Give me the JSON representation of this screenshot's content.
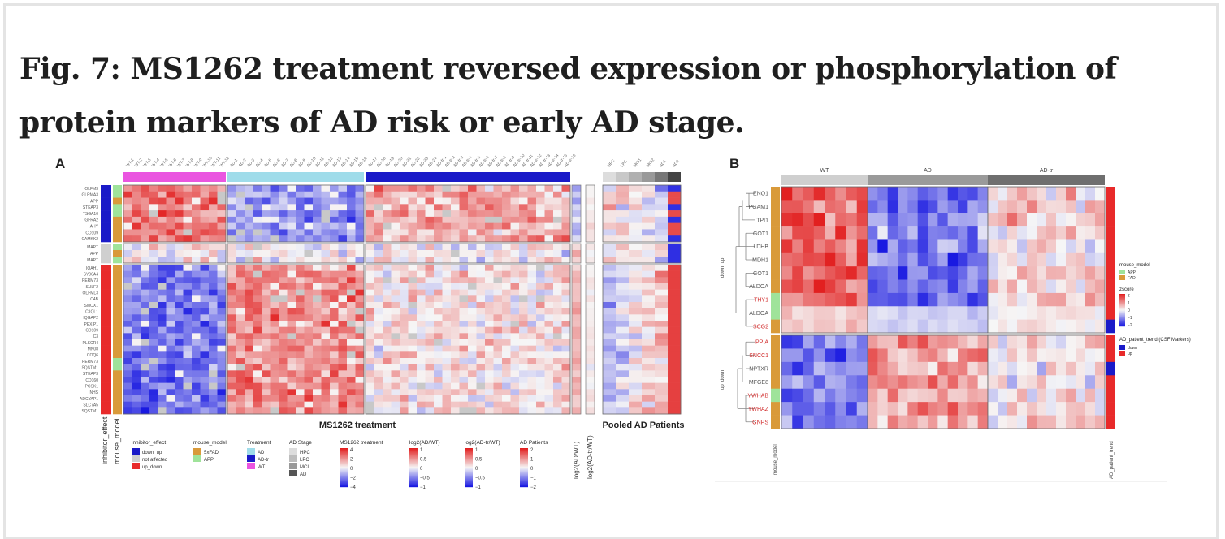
{
  "figure": {
    "title": "Fig. 7: MS1262 treatment reversed expression or phosphorylation of protein markers of AD risk or early AD stage."
  },
  "panel_a": {
    "letter": "A",
    "genes": [
      "OLFM3",
      "GLRMA3",
      "APP",
      "STEAP3",
      "TSGA10",
      "GFRA2",
      "AHY",
      "CD109",
      "CAMKK2",
      "MAPT",
      "APP",
      "MAPT",
      "IQAH1",
      "SY06A4",
      "PERM73",
      "SULF2",
      "OLFML3",
      "C4B",
      "SMOX1",
      "C1QL1",
      "IQGAP2",
      "PEXIP1",
      "CD109",
      "C3",
      "PLSCR4",
      "MN08",
      "COQ6",
      "PERM73",
      "SQSTM1",
      "STEAP3",
      "CD160",
      "PCSK1",
      "NHS",
      "ADCYAP1",
      "SLC7A5",
      "SQSTM1"
    ],
    "column_labels": [
      "WT-1",
      "WT-2",
      "WT-3",
      "WT-4",
      "WT-5",
      "WT-6",
      "WT-7",
      "WT-8",
      "WT-9",
      "WT-10",
      "WT-11",
      "WT-12",
      "AD-1",
      "AD-2",
      "AD-3",
      "AD-4",
      "AD-5",
      "AD-6",
      "AD-7",
      "AD-8",
      "AD-9",
      "AD-10",
      "AD-11",
      "AD-12",
      "AD-13",
      "AD-14",
      "AD-15",
      "AD-16",
      "AD-17",
      "AD-18",
      "AD-19",
      "AD-20",
      "AD-21",
      "AD-22",
      "AD-23",
      "AD-24",
      "AD-tr-1",
      "AD-tr-2",
      "AD-tr-3",
      "AD-tr-4",
      "AD-tr-5",
      "AD-tr-6",
      "AD-tr-7",
      "AD-tr-8",
      "AD-tr-9",
      "AD-tr-10",
      "AD-tr-11",
      "AD-tr-12",
      "AD-tr-13",
      "AD-tr-14",
      "AD-tr-15",
      "AD-tr-16"
    ],
    "patient_labels": [
      "HPC",
      "LPC",
      "MCI1",
      "MCI2",
      "AD1",
      "AD2"
    ],
    "row_annot_labels": [
      "inhibitor_effect",
      "mouse_model"
    ],
    "col_annot_labels": [
      "log2(AD/WT)",
      "log2(AD-tr/WT)"
    ],
    "bottom_label_main": "MS1262 treatment",
    "bottom_label_patients": "Pooled AD Patients",
    "legends": [
      {
        "title": "inhibitor_effect",
        "items": [
          {
            "label": "down_up",
            "color": "#1a1ac8"
          },
          {
            "label": "not affected",
            "color": "#cfcfcf"
          },
          {
            "label": "up_down",
            "color": "#e82a2a"
          }
        ]
      },
      {
        "title": "mouse_model",
        "items": [
          {
            "label": "5xFAD",
            "color": "#d99a3a"
          },
          {
            "label": "APP",
            "color": "#9fe39a"
          }
        ]
      },
      {
        "title": "Treatment",
        "items": [
          {
            "label": "AD",
            "color": "#9fdcea"
          },
          {
            "label": "AD-tr",
            "color": "#1a1ac8"
          },
          {
            "label": "WT",
            "color": "#ea55e0"
          }
        ]
      },
      {
        "title": "AD Stage",
        "items": [
          {
            "label": "HPC",
            "color": "#dddddd"
          },
          {
            "label": "LPC",
            "color": "#bdbdbd"
          },
          {
            "label": "MCI",
            "color": "#999999"
          },
          {
            "label": "AD",
            "color": "#555555"
          }
        ]
      }
    ],
    "scales": [
      {
        "title": "MS1262 treatment",
        "ticks": [
          "4",
          "2",
          "0",
          "−2",
          "−4"
        ]
      },
      {
        "title": "log2(AD/WT)",
        "ticks": [
          "1",
          "0.5",
          "0",
          "−0.5",
          "−1"
        ]
      },
      {
        "title": "log2(AD-tr/WT)",
        "ticks": [
          "1",
          "0.5",
          "0",
          "−0.5",
          "−1"
        ]
      },
      {
        "title": "AD Patients",
        "ticks": [
          "2",
          "1",
          "0",
          "−1",
          "−2"
        ]
      }
    ]
  },
  "panel_b": {
    "letter": "B",
    "groups": [
      "WT",
      "AD",
      "AD-tr"
    ],
    "genes": [
      {
        "name": "ENO1",
        "highlight": false
      },
      {
        "name": "PGAM1",
        "highlight": false
      },
      {
        "name": "TPI1",
        "highlight": false
      },
      {
        "name": "GOT1",
        "highlight": false
      },
      {
        "name": "LDHB",
        "highlight": false
      },
      {
        "name": "MDH1",
        "highlight": false
      },
      {
        "name": "GOT1",
        "highlight": false
      },
      {
        "name": "ALDOA",
        "highlight": false
      },
      {
        "name": "THY1",
        "highlight": true
      },
      {
        "name": "ALDOA",
        "highlight": false
      },
      {
        "name": "SCG2",
        "highlight": true
      },
      {
        "name": "PPIA",
        "highlight": true
      },
      {
        "name": "SNCC1",
        "highlight": true
      },
      {
        "name": "NPTXR",
        "highlight": false
      },
      {
        "name": "MFGE8",
        "highlight": false
      },
      {
        "name": "YWHAB",
        "highlight": true
      },
      {
        "name": "YWHAZ",
        "highlight": true
      },
      {
        "name": "GNPS",
        "highlight": true
      }
    ],
    "cluster_labels": [
      "down_up",
      "up_down"
    ],
    "bottom_left_label": "mouse_model",
    "bottom_right_label": "AD_patient_trend",
    "legends": [
      {
        "title": "mouse_model",
        "items": [
          {
            "label": "APP",
            "color": "#9fe39a"
          },
          {
            "label": "FAD",
            "color": "#d99a3a"
          }
        ]
      },
      {
        "title": "zscore",
        "ticks": [
          "2",
          "1",
          "0",
          "−1",
          "−2"
        ]
      },
      {
        "title": "AD_patient_trend (CSF Markers)",
        "items": [
          {
            "label": "down",
            "color": "#1a1ac8"
          },
          {
            "label": "up",
            "color": "#e82a2a"
          }
        ]
      }
    ]
  }
}
